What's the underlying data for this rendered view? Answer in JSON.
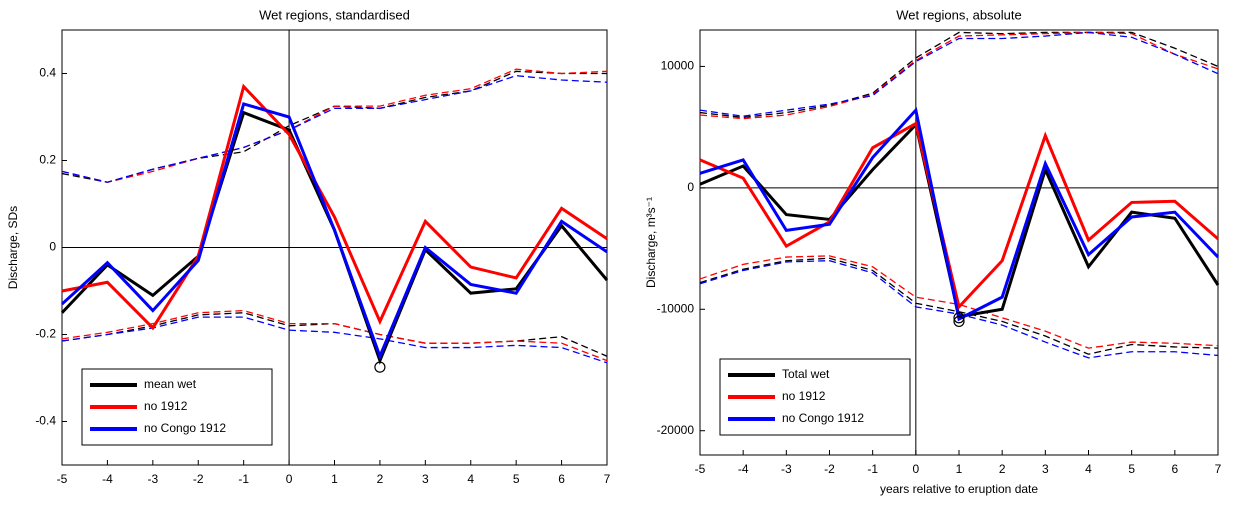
{
  "chart_data": [
    {
      "type": "line",
      "title": "Wet regions, standardised",
      "y_label": "Discharge, SDs",
      "x": [
        -5,
        -4,
        -3,
        -2,
        -1,
        0,
        1,
        2,
        3,
        4,
        5,
        6,
        7
      ],
      "xlim": [
        -5,
        7
      ],
      "xticks": [
        -5,
        -4,
        -3,
        -2,
        -1,
        0,
        1,
        2,
        3,
        4,
        5,
        6,
        7
      ],
      "ylim": [
        -0.5,
        0.5
      ],
      "yticks": [
        -0.4,
        -0.2,
        0,
        0.2,
        0.4
      ],
      "zero_lines": true,
      "legend": "lower left",
      "series": [
        {
          "name": "mean wet",
          "color": "#000000",
          "values": [
            -0.15,
            -0.04,
            -0.11,
            -0.02,
            0.31,
            0.27,
            0.04,
            -0.26,
            -0.005,
            -0.105,
            -0.095,
            0.05,
            -0.075
          ]
        },
        {
          "name": "no 1912",
          "color": "#ff0000",
          "values": [
            -0.1,
            -0.08,
            -0.185,
            -0.02,
            0.37,
            0.26,
            0.07,
            -0.17,
            0.06,
            -0.045,
            -0.07,
            0.09,
            0.02
          ]
        },
        {
          "name": "no Congo 1912",
          "color": "#0000ff",
          "values": [
            -0.13,
            -0.035,
            -0.145,
            -0.03,
            0.33,
            0.3,
            0.04,
            -0.25,
            0,
            -0.085,
            -0.105,
            0.06,
            -0.01
          ]
        },
        {
          "color": "#000000",
          "dashed": true,
          "values": [
            0.17,
            0.15,
            0.18,
            0.205,
            0.22,
            0.28,
            0.325,
            0.32,
            0.345,
            0.36,
            0.405,
            0.4,
            0.4
          ]
        },
        {
          "color": "#ff0000",
          "dashed": true,
          "values": [
            0.175,
            0.15,
            0.175,
            0.205,
            0.23,
            0.27,
            0.325,
            0.325,
            0.35,
            0.365,
            0.41,
            0.4,
            0.405
          ]
        },
        {
          "color": "#0000ff",
          "dashed": true,
          "values": [
            0.175,
            0.15,
            0.18,
            0.205,
            0.23,
            0.27,
            0.32,
            0.32,
            0.34,
            0.36,
            0.395,
            0.385,
            0.38
          ]
        },
        {
          "color": "#000000",
          "dashed": true,
          "values": [
            -0.215,
            -0.2,
            -0.18,
            -0.155,
            -0.15,
            -0.18,
            -0.175,
            -0.2,
            -0.22,
            -0.22,
            -0.215,
            -0.205,
            -0.25
          ]
        },
        {
          "color": "#ff0000",
          "dashed": true,
          "values": [
            -0.21,
            -0.195,
            -0.175,
            -0.15,
            -0.145,
            -0.175,
            -0.175,
            -0.2,
            -0.22,
            -0.22,
            -0.215,
            -0.22,
            -0.26
          ]
        },
        {
          "color": "#0000ff",
          "dashed": true,
          "values": [
            -0.215,
            -0.2,
            -0.185,
            -0.16,
            -0.16,
            -0.19,
            -0.195,
            -0.21,
            -0.23,
            -0.23,
            -0.225,
            -0.23,
            -0.265
          ]
        }
      ],
      "circles": [
        {
          "x": 2,
          "y": -0.275
        }
      ]
    },
    {
      "type": "line",
      "title": "Wet regions, absolute",
      "y_label": "Discharge, m³s⁻¹",
      "x_label": "years relative to eruption date",
      "x": [
        -5,
        -4,
        -3,
        -2,
        -1,
        0,
        1,
        2,
        3,
        4,
        5,
        6,
        7
      ],
      "xlim": [
        -5,
        7
      ],
      "xticks": [
        -5,
        -4,
        -3,
        -2,
        -1,
        0,
        1,
        2,
        3,
        4,
        5,
        6,
        7
      ],
      "ylim": [
        -22000,
        13000
      ],
      "yticks": [
        -20000,
        -10000,
        0,
        10000
      ],
      "zero_lines": true,
      "legend": "lower left",
      "series": [
        {
          "name": "Total wet",
          "color": "#000000",
          "values": [
            300,
            1800,
            -2200,
            -2600,
            1500,
            5200,
            -10600,
            -10000,
            1500,
            -6500,
            -2000,
            -2500,
            -8000
          ]
        },
        {
          "name": "no 1912",
          "color": "#ff0000",
          "values": [
            2300,
            800,
            -4800,
            -2800,
            3300,
            5300,
            -9800,
            -6000,
            4300,
            -4300,
            -1200,
            -1100,
            -4200
          ]
        },
        {
          "name": "no Congo 1912",
          "color": "#0000ff",
          "values": [
            1200,
            2300,
            -3500,
            -3000,
            2500,
            6400,
            -10800,
            -9000,
            2000,
            -5500,
            -2400,
            -2000,
            -5700
          ]
        },
        {
          "color": "#000000",
          "dashed": true,
          "values": [
            6200,
            5800,
            6200,
            6800,
            7800,
            10700,
            12800,
            12700,
            12800,
            12800,
            12800,
            11500,
            10000
          ]
        },
        {
          "color": "#ff0000",
          "dashed": true,
          "values": [
            6000,
            5700,
            6000,
            6700,
            7700,
            10500,
            12500,
            12600,
            12700,
            12800,
            12700,
            11000,
            9800
          ]
        },
        {
          "color": "#0000ff",
          "dashed": true,
          "values": [
            6400,
            5900,
            6400,
            6900,
            7600,
            10400,
            12300,
            12300,
            12500,
            12800,
            12400,
            11000,
            9400
          ]
        },
        {
          "color": "#000000",
          "dashed": true,
          "values": [
            -7800,
            -6700,
            -6000,
            -5800,
            -6800,
            -9500,
            -10200,
            -11000,
            -12200,
            -13700,
            -12900,
            -13100,
            -13200
          ]
        },
        {
          "color": "#ff0000",
          "dashed": true,
          "values": [
            -7500,
            -6300,
            -5700,
            -5600,
            -6500,
            -9000,
            -9600,
            -10700,
            -11800,
            -13200,
            -12700,
            -12800,
            -13000
          ]
        },
        {
          "color": "#0000ff",
          "dashed": true,
          "values": [
            -7900,
            -6800,
            -6100,
            -6000,
            -7000,
            -9800,
            -10400,
            -11300,
            -12700,
            -14000,
            -13500,
            -13500,
            -13800
          ]
        }
      ],
      "circles": [
        {
          "x": 1,
          "y": -10700
        },
        {
          "x": 1,
          "y": -11000
        }
      ]
    }
  ]
}
